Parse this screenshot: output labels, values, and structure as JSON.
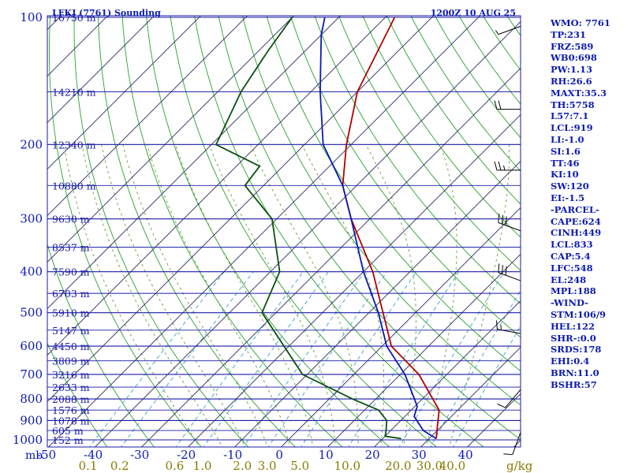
{
  "chart_data": {
    "type": "line",
    "title_left": "LFKJ (7761) Sounding",
    "title_right": "1200Z 10 AUG 25",
    "pressure_unit": "mb",
    "mixing_ratio_unit": "g/kg",
    "pressure_levels": [
      100,
      200,
      300,
      400,
      500,
      600,
      700,
      800,
      900,
      1000
    ],
    "temperature_ticks": [
      -50,
      -40,
      -30,
      -20,
      -10,
      0,
      10,
      20,
      30,
      40
    ],
    "mixing_ratio_ticks": [
      "0.1",
      "0.2",
      "0.6",
      "1.0",
      "2.0",
      "3.0",
      "5.0",
      "10.0",
      "20.0",
      "30.0",
      "40.0"
    ],
    "height_labels": [
      {
        "p": 100,
        "label": "16750 m"
      },
      {
        "p": 150,
        "label": "14210 m"
      },
      {
        "p": 200,
        "label": "12340 m"
      },
      {
        "p": 250,
        "label": "10880 m"
      },
      {
        "p": 300,
        "label": "9630 m"
      },
      {
        "p": 350,
        "label": "8537 m"
      },
      {
        "p": 400,
        "label": "7590 m"
      },
      {
        "p": 450,
        "label": "6703 m"
      },
      {
        "p": 500,
        "label": "5910 m"
      },
      {
        "p": 550,
        "label": "5147 m"
      },
      {
        "p": 600,
        "label": "4450 m"
      },
      {
        "p": 650,
        "label": "3809 m"
      },
      {
        "p": 700,
        "label": "3216 m"
      },
      {
        "p": 750,
        "label": "2633 m"
      },
      {
        "p": 800,
        "label": "2088 m"
      },
      {
        "p": 850,
        "label": "1576 m"
      },
      {
        "p": 900,
        "label": "1078 m"
      },
      {
        "p": 950,
        "label": "605 m"
      },
      {
        "p": 1000,
        "label": "152 m"
      }
    ],
    "series": [
      {
        "name": "temperature",
        "color": "#b00000",
        "points": [
          {
            "p": 993,
            "t": 31.5
          },
          {
            "p": 925,
            "t": 29
          },
          {
            "p": 850,
            "t": 26
          },
          {
            "p": 700,
            "t": 14
          },
          {
            "p": 600,
            "t": 2
          },
          {
            "p": 500,
            "t": -7
          },
          {
            "p": 400,
            "t": -18
          },
          {
            "p": 300,
            "t": -34
          },
          {
            "p": 250,
            "t": -43
          },
          {
            "p": 200,
            "t": -51
          },
          {
            "p": 150,
            "t": -60
          },
          {
            "p": 100,
            "t": -68
          }
        ]
      },
      {
        "name": "dewpoint",
        "color": "#0a5010",
        "points": [
          {
            "p": 993,
            "t": 24
          },
          {
            "p": 980,
            "t": 20
          },
          {
            "p": 950,
            "t": 19
          },
          {
            "p": 900,
            "t": 17
          },
          {
            "p": 850,
            "t": 13
          },
          {
            "p": 800,
            "t": 5
          },
          {
            "p": 700,
            "t": -11
          },
          {
            "p": 500,
            "t": -33
          },
          {
            "p": 400,
            "t": -38
          },
          {
            "p": 300,
            "t": -51
          },
          {
            "p": 250,
            "t": -64
          },
          {
            "p": 225,
            "t": -65
          },
          {
            "p": 200,
            "t": -79
          },
          {
            "p": 150,
            "t": -85
          },
          {
            "p": 120,
            "t": -88
          },
          {
            "p": 100,
            "t": -90
          }
        ]
      },
      {
        "name": "parcel",
        "color": "#0a1ab0",
        "points": [
          {
            "p": 993,
            "t": 31.5
          },
          {
            "p": 950,
            "t": 27
          },
          {
            "p": 880,
            "t": 22
          },
          {
            "p": 833,
            "t": 20.5
          },
          {
            "p": 700,
            "t": 11
          },
          {
            "p": 600,
            "t": 1
          },
          {
            "p": 500,
            "t": -8
          },
          {
            "p": 400,
            "t": -20
          },
          {
            "p": 300,
            "t": -34
          },
          {
            "p": 250,
            "t": -43
          },
          {
            "p": 200,
            "t": -56
          },
          {
            "p": 150,
            "t": -68
          },
          {
            "p": 110,
            "t": -80
          },
          {
            "p": 100,
            "t": -83
          }
        ]
      }
    ],
    "wind_barbs": [
      {
        "p": 105,
        "dir": 250,
        "spd": 5
      },
      {
        "p": 165,
        "dir": 270,
        "spd": 20
      },
      {
        "p": 230,
        "dir": 270,
        "spd": 25
      },
      {
        "p": 320,
        "dir": 290,
        "spd": 30
      },
      {
        "p": 420,
        "dir": 290,
        "spd": 30
      },
      {
        "p": 560,
        "dir": 280,
        "spd": 15
      },
      {
        "p": 760,
        "dir": 220,
        "spd": 10
      },
      {
        "p": 960,
        "dir": 200,
        "spd": 10
      }
    ]
  },
  "indices": [
    "WMO: 7761",
    "TP:231",
    "FRZ:589",
    "WB0:698",
    "PW:1.13",
    "RH:26.6",
    "MAXT:35.3",
    "TH:5758",
    "L57:7.1",
    "LCL:919",
    "LI:-1.0",
    "SI:1.6",
    "TT:46",
    "KI:10",
    "SW:120",
    "EI:-1.5",
    "-PARCEL-",
    "CAPE:624",
    "CINH:449",
    "LCL:833",
    "CAP:5.4",
    "LFC:548",
    "EL:248",
    "MPL:188",
    "-WIND-",
    "STM:106/9",
    "HEL:122",
    "SHR-:0.0",
    "SRDS:178",
    "EHI:0.4",
    "BRN:11.0",
    "BSHR:57"
  ],
  "colors": {
    "isobar": "#1a1aa8",
    "isotherm": "#2a2a60",
    "dry_adiabat": "#2aa02a",
    "moist_adiabat": "#6a9a3a",
    "mixing_ratio": "#3aa0d0",
    "label": "#0b1ab0",
    "axis_bottom": "#0b1ab0",
    "axis_mixing": "#8a7a00"
  }
}
